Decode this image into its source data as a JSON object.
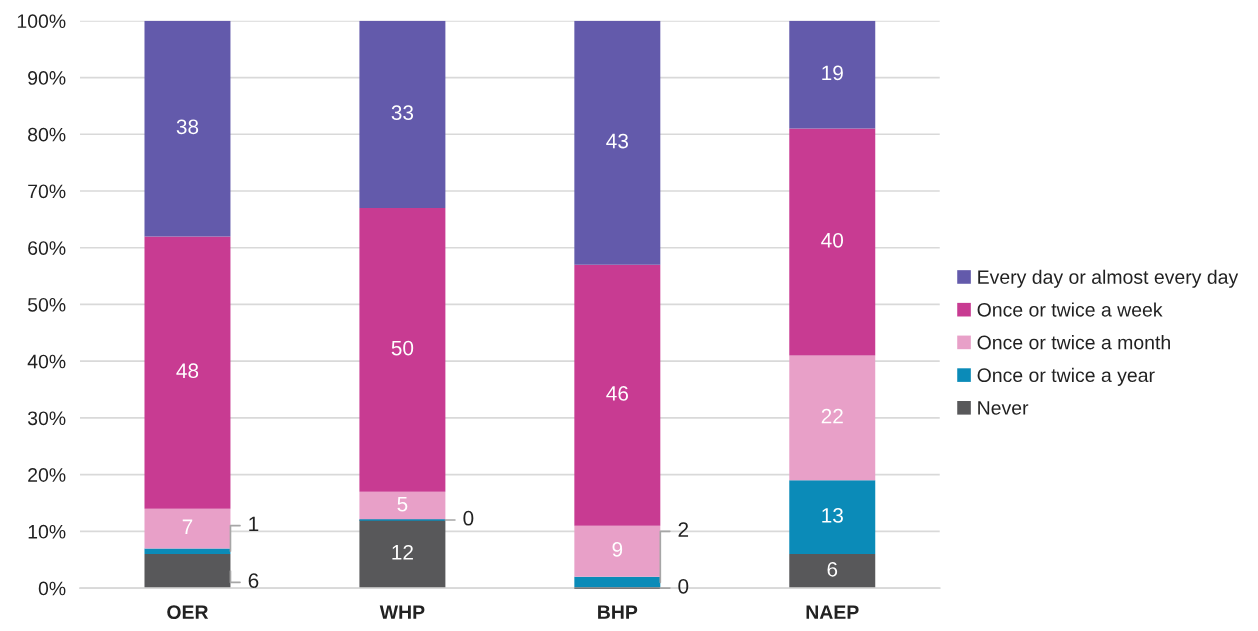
{
  "chart_data": {
    "type": "bar",
    "stacked": true,
    "categories": [
      "OER",
      "WHP",
      "BHP",
      "NAEP"
    ],
    "series": [
      {
        "name": "Never",
        "color": "#58585a",
        "values": [
          6,
          12,
          0,
          6
        ]
      },
      {
        "name": "Once or twice a year",
        "color": "#0b8bb8",
        "values": [
          1,
          0,
          2,
          13
        ]
      },
      {
        "name": "Once or twice a month",
        "color": "#e8a0c8",
        "values": [
          7,
          5,
          9,
          22
        ]
      },
      {
        "name": "Once or twice a week",
        "color": "#c83b92",
        "values": [
          48,
          50,
          46,
          40
        ]
      },
      {
        "name": "Every day or almost every day",
        "color": "#635aab",
        "values": [
          38,
          33,
          43,
          19
        ]
      }
    ],
    "ylim": [
      0,
      100
    ],
    "yticks": [
      {
        "value": 0,
        "label": "0%"
      },
      {
        "value": 10,
        "label": "10%"
      },
      {
        "value": 20,
        "label": "20%"
      },
      {
        "value": 30,
        "label": "30%"
      },
      {
        "value": 40,
        "label": "40%"
      },
      {
        "value": 50,
        "label": "50%"
      },
      {
        "value": 60,
        "label": "60%"
      },
      {
        "value": 70,
        "label": "70%"
      },
      {
        "value": 80,
        "label": "80%"
      },
      {
        "value": 90,
        "label": "90%"
      },
      {
        "value": 100,
        "label": "100%"
      }
    ],
    "grid": "y",
    "legend": "right",
    "data_labels": true
  }
}
